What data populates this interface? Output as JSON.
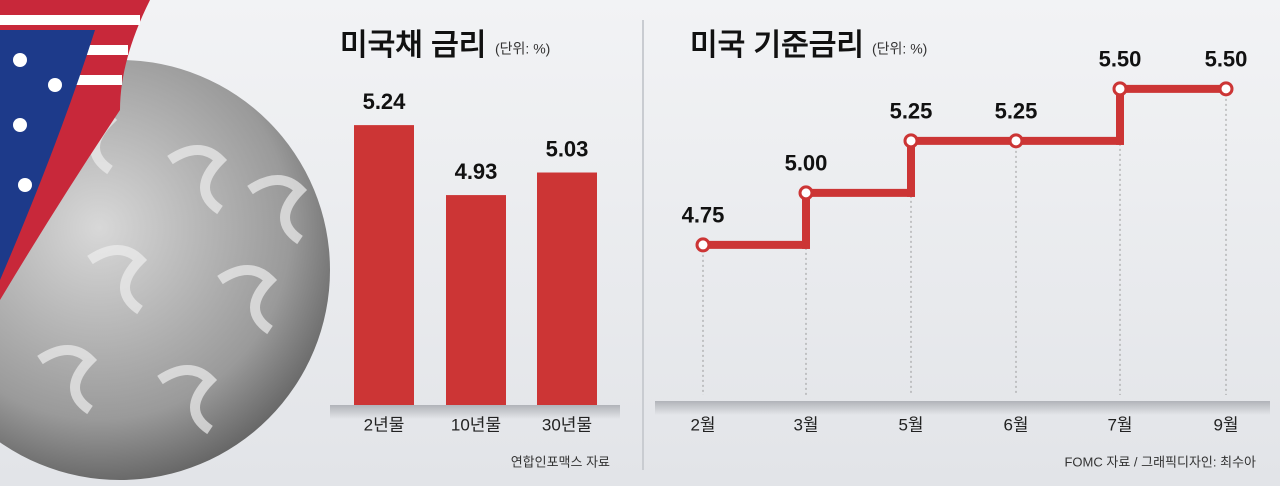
{
  "chart_data": [
    {
      "type": "bar",
      "title": "미국채 금리",
      "subtitle": "(단위: %)",
      "categories": [
        "2년물",
        "10년물",
        "30년물"
      ],
      "values": [
        5.24,
        4.93,
        5.03
      ],
      "color": "#cc3535",
      "ylim": [
        4,
        5.4
      ],
      "source": "연합인포맥스 자료"
    },
    {
      "type": "step",
      "title": "미국 기준금리",
      "subtitle": "(단위: %)",
      "categories": [
        "2월",
        "3월",
        "5월",
        "6월",
        "7월",
        "9월"
      ],
      "values": [
        4.75,
        5.0,
        5.25,
        5.25,
        5.5,
        5.5
      ],
      "value_labels": [
        "4.75",
        "5.00",
        "5.25",
        "5.25",
        "5.50",
        "5.50"
      ],
      "color": "#cc3535",
      "ylim": [
        4,
        5.6
      ],
      "source": "FOMC 자료 / 그래픽디자인: 최수아"
    }
  ]
}
